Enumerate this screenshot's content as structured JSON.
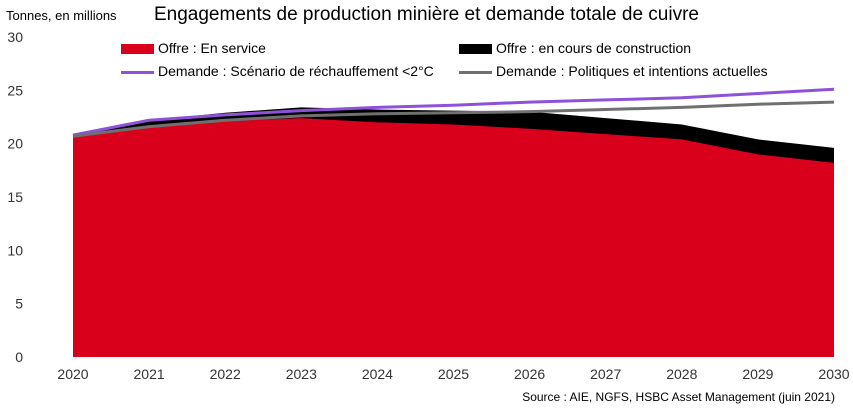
{
  "chart_data": {
    "type": "area",
    "title": "Engagements de production minière et demande totale de cuivre",
    "ylabel": "Tonnes, en millions",
    "xlabel": "",
    "x": [
      "2020",
      "2021",
      "2022",
      "2023",
      "2024",
      "2025",
      "2026",
      "2027",
      "2028",
      "2029",
      "2030"
    ],
    "ylim": [
      0,
      30
    ],
    "yticks": [
      0,
      5,
      10,
      15,
      20,
      25,
      30
    ],
    "grid": false,
    "legend_position": "top",
    "series": [
      {
        "name": "Offre : En service",
        "kind": "area",
        "stack": "supply",
        "color": "#d9001b",
        "values": [
          20.6,
          21.6,
          22.1,
          22.4,
          22.0,
          21.8,
          21.4,
          20.9,
          20.4,
          19.0,
          18.2
        ]
      },
      {
        "name": "Offre : en cours de construction",
        "kind": "area",
        "stack": "supply",
        "color": "#000000",
        "values": [
          0.1,
          0.6,
          0.8,
          1.0,
          1.2,
          1.3,
          1.6,
          1.5,
          1.4,
          1.4,
          1.4
        ]
      },
      {
        "name": "Demande : Scénario de réchauffement <2°C",
        "kind": "line",
        "color": "#8e52d9",
        "values": [
          20.8,
          22.2,
          22.7,
          23.1,
          23.4,
          23.6,
          23.9,
          24.1,
          24.3,
          24.7,
          25.1
        ]
      },
      {
        "name": "Demande : Politiques et intentions actuelles",
        "kind": "line",
        "color": "#707070",
        "values": [
          20.7,
          21.6,
          22.2,
          22.6,
          22.8,
          22.9,
          23.0,
          23.2,
          23.4,
          23.7,
          23.9
        ]
      }
    ],
    "source": "Source : AIE, NGFS, HSBC Asset Management (juin 2021)"
  }
}
